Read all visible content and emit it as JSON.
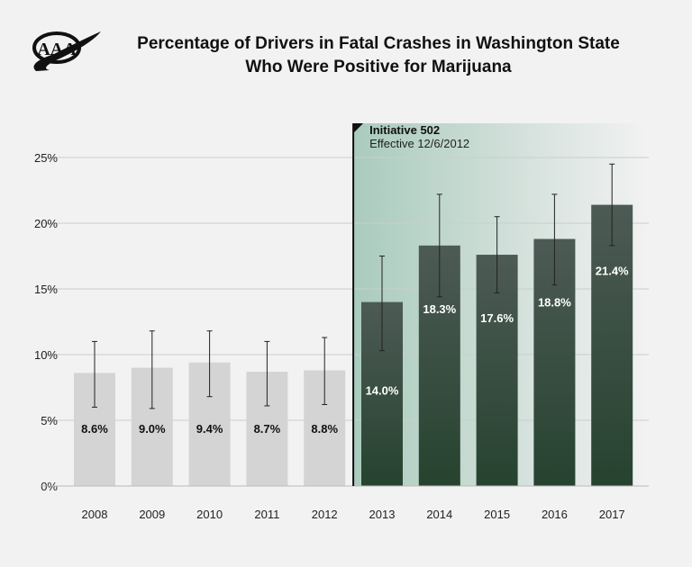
{
  "logo_text": "AAA",
  "chart_data": {
    "type": "bar",
    "title": "Percentage of Drivers in Fatal Crashes in Washington State Who Were Positive for Marijuana",
    "title_lines": [
      "Percentage of Drivers in Fatal Crashes in Washington State",
      "Who Were Positive for Marijuana"
    ],
    "categories": [
      "2008",
      "2009",
      "2010",
      "2011",
      "2012",
      "2013",
      "2014",
      "2015",
      "2016",
      "2017"
    ],
    "values": [
      8.6,
      9.0,
      9.4,
      8.7,
      8.8,
      14.0,
      18.3,
      17.6,
      18.8,
      21.4
    ],
    "data_labels": [
      "8.6%",
      "9.0%",
      "9.4%",
      "8.7%",
      "8.8%",
      "14.0%",
      "18.3%",
      "17.6%",
      "18.8%",
      "21.4%"
    ],
    "error_low": [
      6.0,
      5.9,
      6.8,
      6.1,
      6.2,
      10.3,
      14.4,
      14.7,
      15.3,
      18.3
    ],
    "error_high": [
      11.0,
      11.8,
      11.8,
      11.0,
      11.3,
      17.5,
      22.2,
      20.5,
      22.2,
      24.5
    ],
    "ylim": [
      0,
      25
    ],
    "yticks": [
      0,
      5,
      10,
      15,
      20,
      25
    ],
    "ytick_labels": [
      "0%",
      "5%",
      "10%",
      "15%",
      "20%",
      "25%"
    ],
    "grid": true,
    "annotation": {
      "title": "Initiative 502",
      "subtitle": "Effective 12/6/2012",
      "after_category": "2012"
    },
    "colors": {
      "before": "#d4d4d4",
      "after_top": "#4d5a55",
      "after_bottom": "#26432f",
      "shade": "#a9cbbd"
    }
  }
}
